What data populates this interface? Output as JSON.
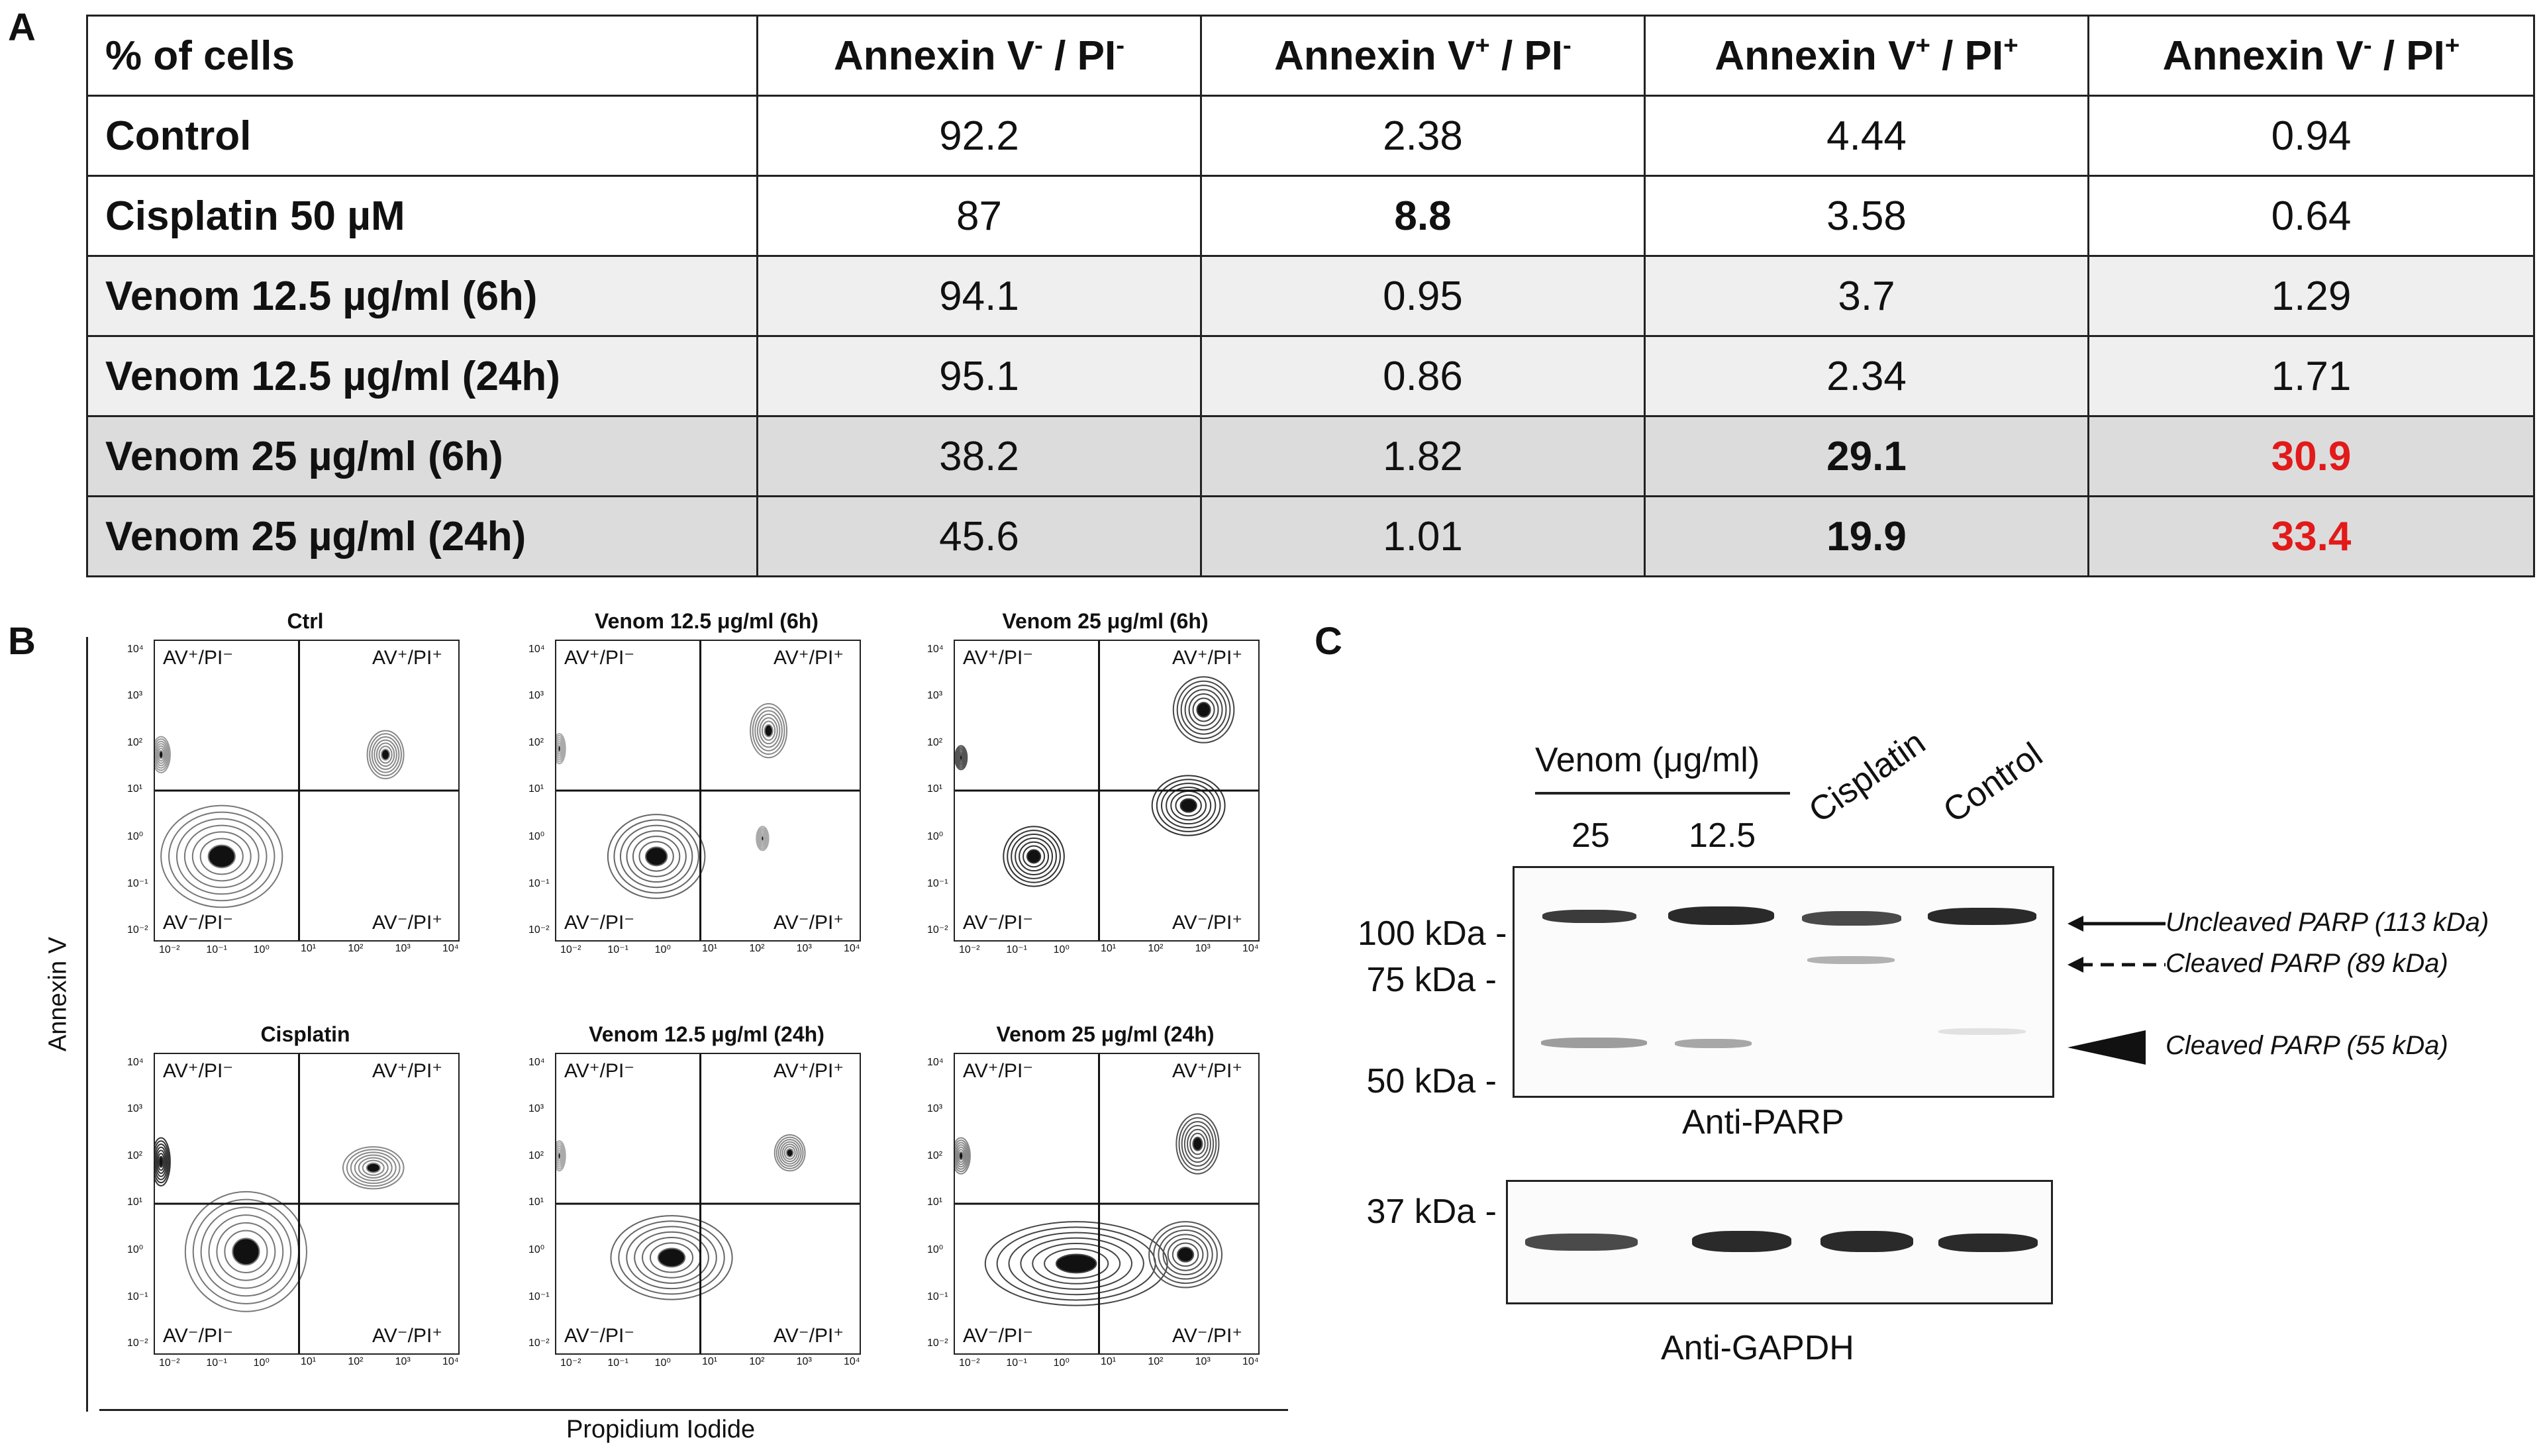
{
  "panels": {
    "a": "A",
    "b": "B",
    "c": "C"
  },
  "table": {
    "header": {
      "col0": "% of cells",
      "col1": {
        "main": "Annexin V",
        "s1": "-",
        "mid": " / PI",
        "s2": "-"
      },
      "col2": {
        "main": "Annexin V",
        "s1": "+",
        "mid": " / PI",
        "s2": "-"
      },
      "col3": {
        "main": "Annexin V",
        "s1": "+",
        "mid": " / PI",
        "s2": "+"
      },
      "col4": {
        "main": "Annexin V",
        "s1": "-",
        "mid": " / PI",
        "s2": "+"
      }
    },
    "rows": [
      {
        "label": "Control",
        "values": [
          "92.2",
          "2.38",
          "4.44",
          "0.94"
        ]
      },
      {
        "label": "Cisplatin 50 µM",
        "values": [
          "87",
          "8.8",
          "3.58",
          "0.64"
        ]
      },
      {
        "label": "Venom 12.5 µg/ml (6h)",
        "values": [
          "94.1",
          "0.95",
          "3.7",
          "1.29"
        ]
      },
      {
        "label": "Venom 12.5 µg/ml (24h)",
        "values": [
          "95.1",
          "0.86",
          "2.34",
          "1.71"
        ]
      },
      {
        "label": "Venom 25 µg/ml (6h)",
        "values": [
          "38.2",
          "1.82",
          "29.1",
          "30.9"
        ]
      },
      {
        "label": "Venom 25 µg/ml (24h)",
        "values": [
          "45.6",
          "1.01",
          "19.9",
          "33.4"
        ]
      }
    ],
    "highlight_color": "#e21a1a"
  },
  "flow": {
    "y_axis_title": "Annexin V",
    "x_axis_title": "Propidium Iodide",
    "quadrants": {
      "ul": "AV⁺/PI⁻",
      "ur": "AV⁺/PI⁺",
      "ll": "AV⁻/PI⁻",
      "lr": "AV⁻/PI⁺"
    },
    "ticks": [
      "10⁻²",
      "10⁻¹",
      "10⁰",
      "10¹",
      "10²",
      "10³",
      "10⁴"
    ],
    "plots": [
      {
        "title": "Ctrl"
      },
      {
        "title": "Venom 12.5 μg/ml (6h)"
      },
      {
        "title": "Venom 25 μg/ml (6h)"
      },
      {
        "title": "Cisplatin"
      },
      {
        "title": "Venom 12.5 μg/ml (24h)"
      },
      {
        "title": "Venom 25 μg/ml (24h)"
      }
    ]
  },
  "western": {
    "group_label": "Venom (μg/ml)",
    "lanes": [
      "25",
      "12.5",
      "Cisplatin",
      "Control"
    ],
    "mw_markers": [
      "100 kDa -",
      "75 kDa -",
      "50 kDa -",
      "37 kDa -"
    ],
    "bands": [
      "Uncleaved PARP (113 kDa)",
      "Cleaved PARP (89 kDa)",
      "Cleaved PARP (55 kDa)"
    ],
    "caption_parp": "Anti-PARP",
    "caption_gapdh": "Anti-GAPDH"
  }
}
